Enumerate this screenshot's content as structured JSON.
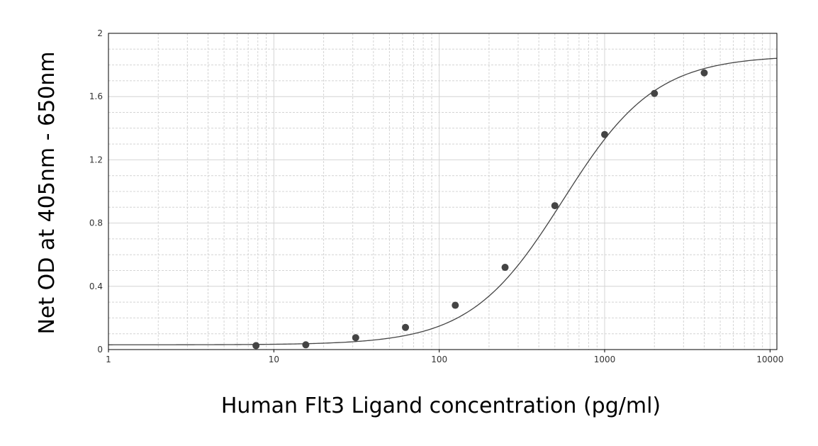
{
  "chart_data": {
    "type": "scatter",
    "title": "",
    "xlabel": "Human Flt3 Ligand concentration (pg/ml)",
    "ylabel": "Net OD at 405nm - 650nm",
    "x_scale": "log",
    "xlim": [
      1,
      11000
    ],
    "ylim": [
      0,
      2
    ],
    "x_ticks": [
      1,
      10,
      100,
      1000,
      10000
    ],
    "x_tick_labels": [
      "1",
      "10",
      "100",
      "1000",
      "10000"
    ],
    "y_ticks": [
      0,
      0.4,
      0.8,
      1.2,
      1.6,
      2
    ],
    "y_tick_labels": [
      "0",
      "0.4",
      "0.8",
      "1.2",
      "1.6",
      "2"
    ],
    "grid": true,
    "legend": "none",
    "series": [
      {
        "type": "scatter",
        "x": [
          7.8,
          15.6,
          31.25,
          62.5,
          125,
          250,
          500,
          1000,
          2000,
          4000
        ],
        "y": [
          0.025,
          0.03,
          0.075,
          0.14,
          0.28,
          0.52,
          0.91,
          1.36,
          1.62,
          1.75
        ]
      },
      {
        "type": "line",
        "fit": "four-parameter logistic",
        "params": {
          "bottom": 0.03,
          "top": 1.86,
          "ec50": 560,
          "hill": 1.55
        }
      }
    ],
    "colors": {
      "points": "#444444",
      "curve": "#444444",
      "grid": "#d4d4d4",
      "frame": "#000000"
    }
  }
}
